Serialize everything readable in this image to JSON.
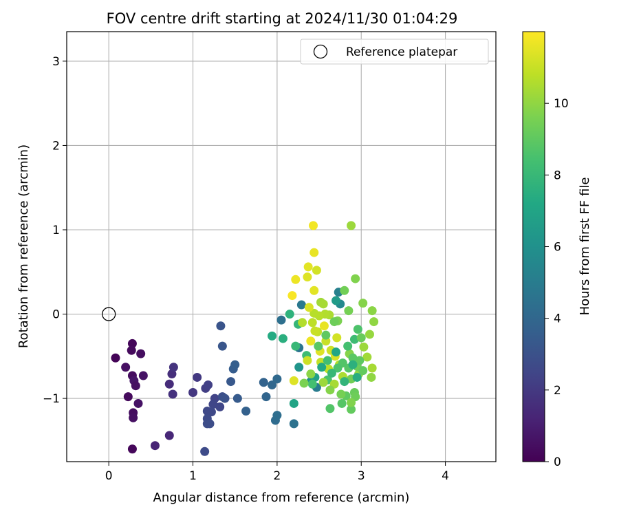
{
  "chart_data": {
    "type": "scatter",
    "title": "FOV centre drift starting at 2024/11/30 01:04:29",
    "xlabel": "Angular distance from reference (arcmin)",
    "ylabel": "Rotation from reference (arcmin)",
    "xlim": [
      -0.5,
      4.6
    ],
    "ylim": [
      -1.75,
      3.35
    ],
    "xticks": [
      0,
      1,
      2,
      3,
      4
    ],
    "yticks": [
      -1,
      0,
      1,
      2,
      3
    ],
    "grid": true,
    "legend": {
      "placement": "top-right",
      "entries": [
        {
          "label": "Reference platepar",
          "marker": "open-circle"
        }
      ]
    },
    "reference": {
      "x": 0,
      "y": 0
    },
    "colorbar": {
      "label": "Hours from first FF file",
      "colormap": "viridis",
      "range": [
        0,
        12
      ],
      "ticks": [
        0,
        2,
        4,
        6,
        8,
        10
      ]
    },
    "points": [
      [
        0.28,
        -0.35,
        0.2
      ],
      [
        0.27,
        -0.43,
        0.3
      ],
      [
        0.38,
        -0.47,
        0.4
      ],
      [
        0.08,
        -0.52,
        0.1
      ],
      [
        0.2,
        -0.63,
        0.5
      ],
      [
        0.28,
        -0.73,
        0.4
      ],
      [
        0.41,
        -0.73,
        0.6
      ],
      [
        0.3,
        -0.79,
        0.7
      ],
      [
        0.32,
        -0.85,
        0.5
      ],
      [
        0.23,
        -0.98,
        0.3
      ],
      [
        0.35,
        -1.06,
        0.6
      ],
      [
        0.29,
        -1.17,
        0.4
      ],
      [
        0.29,
        -1.23,
        0.5
      ],
      [
        0.28,
        -1.6,
        0.2
      ],
      [
        0.55,
        -1.56,
        1.2
      ],
      [
        0.72,
        -1.44,
        1.3
      ],
      [
        0.72,
        -0.83,
        1.5
      ],
      [
        0.75,
        -0.71,
        1.6
      ],
      [
        0.77,
        -0.63,
        1.8
      ],
      [
        0.76,
        -0.95,
        1.7
      ],
      [
        1.0,
        -0.93,
        1.9
      ],
      [
        1.05,
        -0.75,
        2.0
      ],
      [
        1.15,
        -0.88,
        2.2
      ],
      [
        1.18,
        -0.84,
        2.3
      ],
      [
        1.26,
        -1.0,
        2.4
      ],
      [
        1.32,
        -1.1,
        2.5
      ],
      [
        1.24,
        -1.07,
        2.5
      ],
      [
        1.17,
        -1.15,
        2.6
      ],
      [
        1.22,
        -1.16,
        2.6
      ],
      [
        1.17,
        -1.24,
        2.7
      ],
      [
        1.17,
        -1.3,
        2.8
      ],
      [
        1.2,
        -1.3,
        2.8
      ],
      [
        1.14,
        -1.63,
        2.7
      ],
      [
        1.35,
        -0.98,
        2.9
      ],
      [
        1.38,
        -1.0,
        3.0
      ],
      [
        1.33,
        -0.14,
        3.1
      ],
      [
        1.35,
        -0.38,
        3.2
      ],
      [
        1.45,
        -0.8,
        3.3
      ],
      [
        1.48,
        -0.65,
        3.5
      ],
      [
        1.5,
        -0.6,
        3.6
      ],
      [
        1.53,
        -1.0,
        3.4
      ],
      [
        1.63,
        -1.15,
        3.7
      ],
      [
        1.84,
        -0.81,
        3.8
      ],
      [
        1.87,
        -0.98,
        3.9
      ],
      [
        1.94,
        -0.84,
        4.0
      ],
      [
        2.0,
        -0.77,
        4.1
      ],
      [
        1.98,
        -1.26,
        4.2
      ],
      [
        2.0,
        -1.2,
        4.3
      ],
      [
        2.05,
        -0.07,
        4.4
      ],
      [
        2.2,
        -1.3,
        4.5
      ],
      [
        2.26,
        -0.4,
        4.6
      ],
      [
        2.29,
        0.11,
        4.8
      ],
      [
        2.47,
        -0.87,
        5.0
      ],
      [
        2.73,
        0.26,
        5.2
      ],
      [
        2.75,
        0.12,
        5.6
      ],
      [
        2.4,
        -0.8,
        5.8
      ],
      [
        2.26,
        -0.63,
        6.2
      ],
      [
        2.7,
        0.16,
        6.5
      ],
      [
        2.45,
        -0.75,
        6.8
      ],
      [
        2.2,
        -1.06,
        7.0
      ],
      [
        1.94,
        -0.26,
        7.3
      ],
      [
        2.07,
        -0.29,
        7.5
      ],
      [
        2.15,
        0.0,
        7.7
      ],
      [
        2.25,
        -0.12,
        7.9
      ],
      [
        2.22,
        -0.38,
        8.0
      ],
      [
        2.35,
        -0.49,
        8.2
      ],
      [
        2.42,
        -0.83,
        8.4
      ],
      [
        2.6,
        -0.78,
        8.5
      ],
      [
        2.63,
        -1.12,
        8.7
      ],
      [
        2.77,
        -1.06,
        8.8
      ],
      [
        2.82,
        -0.97,
        9.0
      ],
      [
        2.88,
        -1.13,
        9.1
      ],
      [
        2.92,
        -0.93,
        9.2
      ],
      [
        2.93,
        -0.98,
        9.3
      ],
      [
        2.8,
        0.28,
        9.4
      ],
      [
        2.85,
        0.04,
        9.5
      ],
      [
        2.72,
        -0.08,
        9.6
      ],
      [
        2.93,
        0.42,
        9.7
      ],
      [
        3.02,
        0.13,
        9.8
      ],
      [
        3.13,
        0.04,
        9.9
      ],
      [
        3.15,
        -0.09,
        10.0
      ],
      [
        3.1,
        -0.24,
        10.1
      ],
      [
        3.03,
        -0.39,
        10.2
      ],
      [
        3.07,
        -0.51,
        10.3
      ],
      [
        3.13,
        -0.64,
        10.4
      ],
      [
        3.12,
        -0.75,
        10.0
      ],
      [
        2.97,
        -0.71,
        9.9
      ],
      [
        2.86,
        -0.47,
        9.8
      ],
      [
        2.88,
        -1.05,
        9.7
      ],
      [
        2.88,
        1.05,
        10.2
      ],
      [
        2.52,
        0.14,
        10.3
      ],
      [
        2.55,
        0.12,
        10.4
      ],
      [
        2.62,
        -0.01,
        10.5
      ],
      [
        2.57,
        0.0,
        10.6
      ],
      [
        2.44,
        0.01,
        10.7
      ],
      [
        2.42,
        -0.1,
        10.8
      ],
      [
        2.48,
        -0.21,
        10.9
      ],
      [
        2.58,
        -0.32,
        11.0
      ],
      [
        2.64,
        -0.43,
        11.1
      ],
      [
        2.71,
        -0.28,
        11.2
      ],
      [
        2.38,
        0.08,
        11.3
      ],
      [
        2.36,
        0.44,
        11.4
      ],
      [
        2.37,
        0.56,
        11.5
      ],
      [
        2.47,
        0.52,
        11.2
      ],
      [
        2.44,
        0.73,
        11.6
      ],
      [
        2.43,
        1.05,
        11.8
      ],
      [
        2.22,
        0.41,
        11.7
      ],
      [
        2.18,
        0.22,
        11.9
      ],
      [
        2.44,
        0.28,
        11.5
      ],
      [
        2.56,
        -0.14,
        11.6
      ],
      [
        2.4,
        -0.32,
        11.7
      ],
      [
        2.51,
        -0.44,
        11.4
      ],
      [
        2.69,
        -0.5,
        11.3
      ],
      [
        2.2,
        -0.79,
        11.4
      ],
      [
        2.36,
        -0.55,
        11.1
      ],
      [
        2.52,
        -0.57,
        10.9
      ],
      [
        2.61,
        -0.65,
        10.8
      ],
      [
        2.74,
        -0.6,
        10.6
      ],
      [
        2.78,
        -0.74,
        10.5
      ],
      [
        2.68,
        -0.83,
        10.4
      ],
      [
        2.55,
        -0.81,
        10.2
      ],
      [
        2.4,
        -0.71,
        9.9
      ],
      [
        2.32,
        -0.82,
        9.6
      ],
      [
        2.63,
        -0.9,
        9.8
      ],
      [
        2.76,
        -0.95,
        9.5
      ],
      [
        2.88,
        -0.77,
        9.4
      ],
      [
        2.95,
        -0.62,
        9.3
      ],
      [
        3.02,
        -0.67,
        9.1
      ],
      [
        2.98,
        -0.55,
        9.0
      ],
      [
        2.9,
        -0.52,
        8.9
      ],
      [
        2.85,
        -0.64,
        8.8
      ],
      [
        2.78,
        -0.58,
        8.7
      ],
      [
        2.72,
        -0.64,
        8.6
      ],
      [
        2.84,
        -0.38,
        8.4
      ],
      [
        2.92,
        -0.3,
        8.2
      ],
      [
        2.96,
        -0.18,
        8.6
      ],
      [
        3.0,
        -0.28,
        9.2
      ],
      [
        2.68,
        -0.09,
        9.3
      ],
      [
        2.58,
        -0.25,
        9.0
      ],
      [
        2.49,
        -0.38,
        8.9
      ],
      [
        2.6,
        -0.55,
        8.3
      ],
      [
        2.65,
        -0.7,
        8.0
      ],
      [
        2.8,
        -0.8,
        7.8
      ],
      [
        2.9,
        -0.6,
        7.6
      ],
      [
        2.95,
        -0.75,
        7.4
      ],
      [
        2.53,
        -0.63,
        7.2
      ],
      [
        2.7,
        -0.45,
        7.1
      ],
      [
        2.45,
        -0.2,
        11.0
      ],
      [
        2.5,
        -0.02,
        10.7
      ],
      [
        2.3,
        -0.1,
        10.6
      ]
    ]
  }
}
